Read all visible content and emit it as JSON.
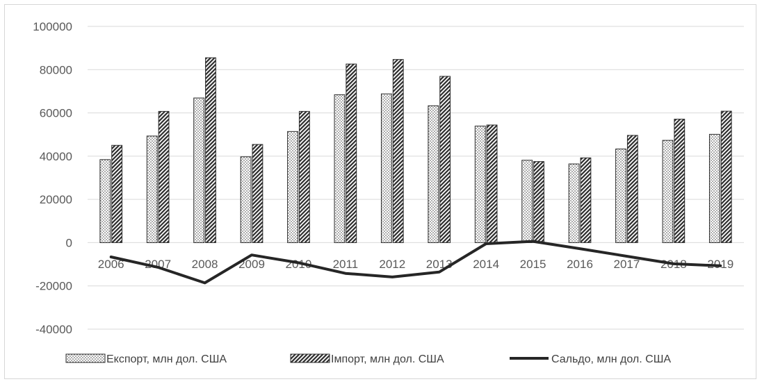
{
  "chart_data": {
    "type": "bar",
    "title": "",
    "xlabel": "",
    "ylabel": "",
    "ylim": [
      -40000,
      100000
    ],
    "yticks": [
      100000,
      80000,
      60000,
      40000,
      20000,
      0,
      -20000,
      -40000
    ],
    "grid": true,
    "legend_position": "bottom",
    "categories": [
      "2006",
      "2007",
      "2008",
      "2009",
      "2010",
      "2011",
      "2012",
      "2013",
      "2014",
      "2015",
      "2016",
      "2017",
      "2018",
      "2019"
    ],
    "series": [
      {
        "name": "Експорт, млн дол. США",
        "type": "bar",
        "pattern": "dots",
        "values": [
          38400,
          49300,
          66900,
          39700,
          51400,
          68400,
          68800,
          63300,
          53900,
          38100,
          36400,
          43300,
          47300,
          50100
        ]
      },
      {
        "name": "Імпорт, млн дол. США",
        "type": "bar",
        "pattern": "hatch",
        "values": [
          45000,
          60700,
          85500,
          45400,
          60700,
          82600,
          84700,
          76900,
          54400,
          37500,
          39200,
          49600,
          57100,
          60800
        ]
      },
      {
        "name": "Сальдо, млн дол. США",
        "type": "line",
        "color": "#262626",
        "values": [
          -6600,
          -11400,
          -18600,
          -5700,
          -9300,
          -14200,
          -15900,
          -13600,
          -500,
          600,
          -2800,
          -6300,
          -9800,
          -10700
        ]
      }
    ]
  }
}
